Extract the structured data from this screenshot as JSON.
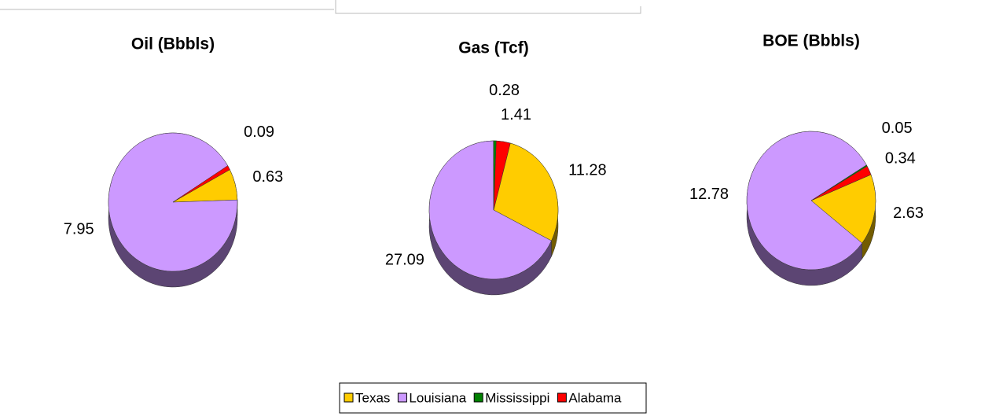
{
  "chart_data": [
    {
      "type": "pie",
      "title": "Oil (Bbbls)",
      "categories": [
        "Texas",
        "Louisiana",
        "Alabama"
      ],
      "values": [
        0.63,
        7.95,
        0.09
      ],
      "colors": [
        "#ffcc00",
        "#cc99ff",
        "#ff0000"
      ]
    },
    {
      "type": "pie",
      "title": "Gas (Tcf)",
      "categories": [
        "Texas",
        "Louisiana",
        "Mississippi",
        "Alabama"
      ],
      "values": [
        11.28,
        27.09,
        0.28,
        1.41
      ],
      "colors": [
        "#ffcc00",
        "#cc99ff",
        "#008000",
        "#ff0000"
      ]
    },
    {
      "type": "pie",
      "title": "BOE (Bbbls)",
      "categories": [
        "Texas",
        "Louisiana",
        "Mississippi",
        "Alabama"
      ],
      "values": [
        2.63,
        12.78,
        0.05,
        0.34
      ],
      "colors": [
        "#ffcc00",
        "#cc99ff",
        "#008000",
        "#ff0000"
      ]
    }
  ]
}
